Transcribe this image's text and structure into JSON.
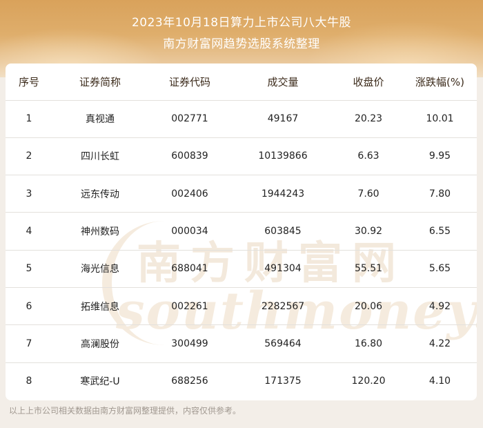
{
  "header": {
    "title": "2023年10月18日算力上市公司八大牛股",
    "subtitle": "南方财富网趋势选股系统整理"
  },
  "watermark": {
    "cn": "南方财富网",
    "en": "southmoney.com"
  },
  "table": {
    "columns": [
      "序号",
      "证券简称",
      "证券代码",
      "成交量",
      "收盘价",
      "涨跌幅(%)"
    ],
    "rows": [
      [
        "1",
        "真视通",
        "002771",
        "49167",
        "20.23",
        "10.01"
      ],
      [
        "2",
        "四川长虹",
        "600839",
        "10139866",
        "6.63",
        "9.95"
      ],
      [
        "3",
        "远东传动",
        "002406",
        "1944243",
        "7.60",
        "7.80"
      ],
      [
        "4",
        "神州数码",
        "000034",
        "603845",
        "30.92",
        "6.55"
      ],
      [
        "5",
        "海光信息",
        "688041",
        "491304",
        "55.51",
        "5.65"
      ],
      [
        "6",
        "拓维信息",
        "002261",
        "2282567",
        "20.06",
        "4.92"
      ],
      [
        "7",
        "高澜股份",
        "300499",
        "569464",
        "16.80",
        "4.22"
      ],
      [
        "8",
        "寒武纪-U",
        "688256",
        "171375",
        "120.20",
        "4.10"
      ]
    ]
  },
  "footer": "以上上市公司相关数据由南方财富网整理提供，内容仅供参考。"
}
